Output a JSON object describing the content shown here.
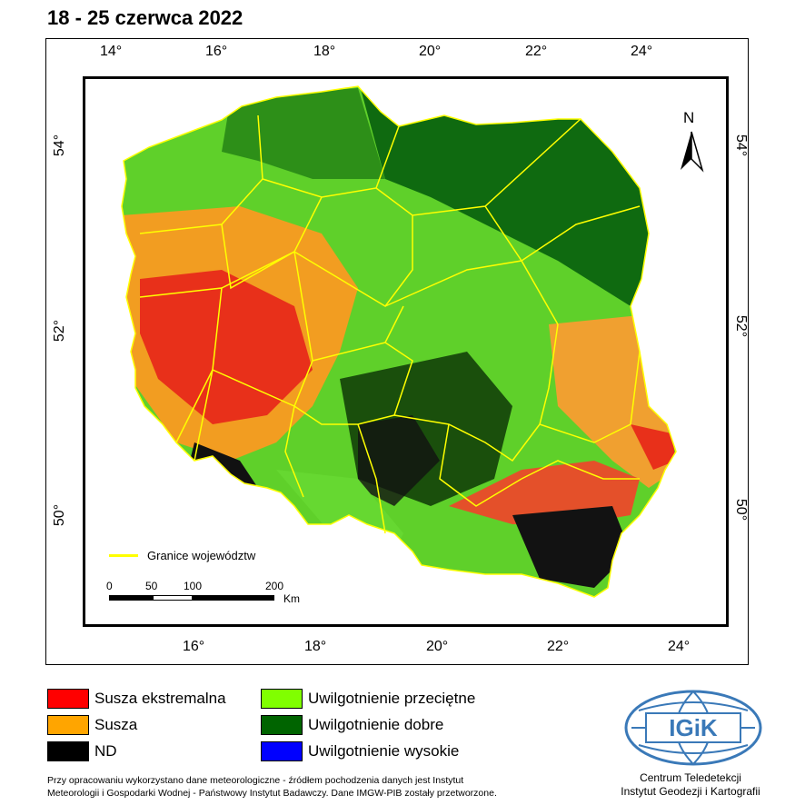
{
  "title": "18 - 25 czerwca 2022",
  "map": {
    "top_ticks": [
      "14°",
      "16°",
      "18°",
      "20°",
      "22°",
      "24°"
    ],
    "bottom_ticks": [
      "16°",
      "18°",
      "20°",
      "22°",
      "24°"
    ],
    "left_ticks": [
      "54°",
      "52°",
      "50°"
    ],
    "right_ticks": [
      "54°",
      "52°",
      "50°"
    ],
    "north_label": "N",
    "border_legend_label": "Granice województw",
    "scale": {
      "labels": [
        "0",
        "50",
        "100",
        "200"
      ],
      "unit": "Km"
    },
    "colors": {
      "extreme_drought": "#ff0000",
      "drought": "#ffa500",
      "nd": "#000000",
      "average": "#80ff00",
      "good": "#006400",
      "high": "#0000ff",
      "borders": "#ffff00"
    }
  },
  "legend": {
    "items": [
      {
        "label": "Susza ekstremalna",
        "color": "#ff0000"
      },
      {
        "label": "Susza",
        "color": "#ffa500"
      },
      {
        "label": "ND",
        "color": "#000000"
      },
      {
        "label": "Uwilgotnienie przeciętne",
        "color": "#80ff00"
      },
      {
        "label": "Uwilgotnienie dobre",
        "color": "#006400"
      },
      {
        "label": "Uwilgotnienie wysokie",
        "color": "#0000ff"
      }
    ]
  },
  "credits": {
    "line1": "Przy opracowaniu wykorzystano dane meteorologiczne - źródłem pochodzenia danych jest Instytut",
    "line2": "Meteorologii i Gospodarki Wodnej - Państwowy Instytut Badawczy. Dane IMGW-PIB zostały przetworzone."
  },
  "logo": {
    "text": "IGiK",
    "org_line1": "Centrum Teledetekcji",
    "org_line2": "Instytut Geodezji i Kartografii"
  }
}
